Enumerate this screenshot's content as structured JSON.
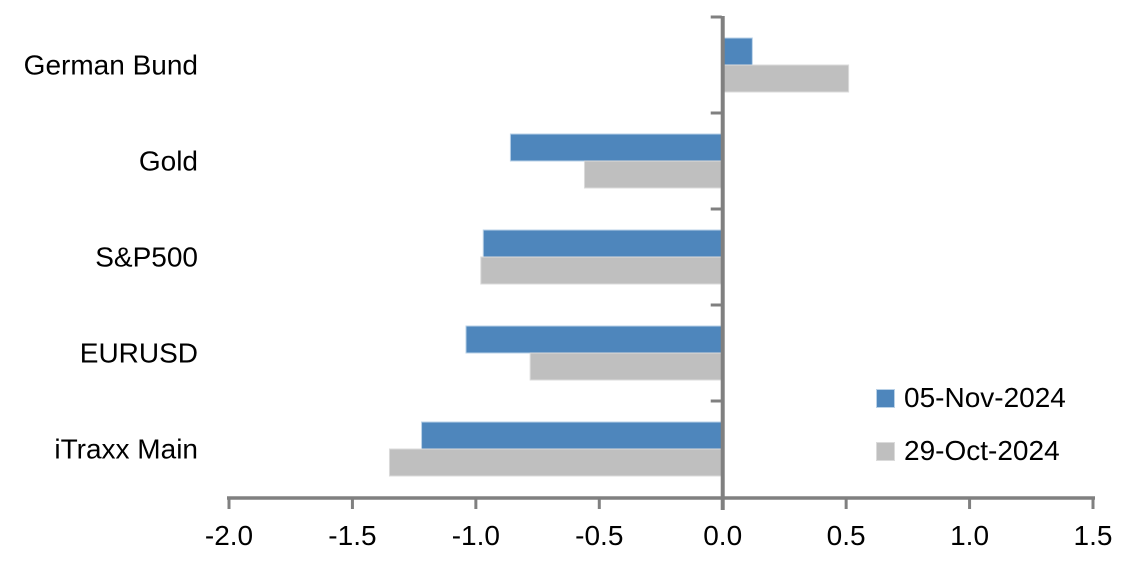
{
  "chart_data": {
    "type": "bar",
    "orientation": "horizontal",
    "title": "",
    "xlabel": "",
    "ylabel": "",
    "grid": false,
    "background": "#FFFFFF",
    "axis_color": "#808080",
    "label_color": "#000000",
    "categories": [
      "German Bund",
      "Gold",
      "S&P500",
      "EURUSD",
      "iTraxx Main"
    ],
    "series": [
      {
        "name": "05-Nov-2024",
        "color": "#4E86BC",
        "edge_color": "#B9D1E7",
        "values": [
          0.12,
          -0.86,
          -0.97,
          -1.04,
          -1.22
        ]
      },
      {
        "name": "29-Oct-2024",
        "color": "#BFBFBF",
        "edge_color": "#DBDBDB",
        "values": [
          0.51,
          -0.56,
          -0.98,
          -0.78,
          -1.35
        ]
      }
    ],
    "xlim": [
      -2.0,
      1.5
    ],
    "x_ticks": [
      -2.0,
      -1.5,
      -1.0,
      -0.5,
      0.0,
      0.5,
      1.0,
      1.5
    ],
    "x_tick_labels": [
      "-2.0",
      "-1.5",
      "-1.0",
      "-0.5",
      "0.0",
      "0.5",
      "1.0",
      "1.5"
    ],
    "legend_position": "lower-right-inside"
  }
}
